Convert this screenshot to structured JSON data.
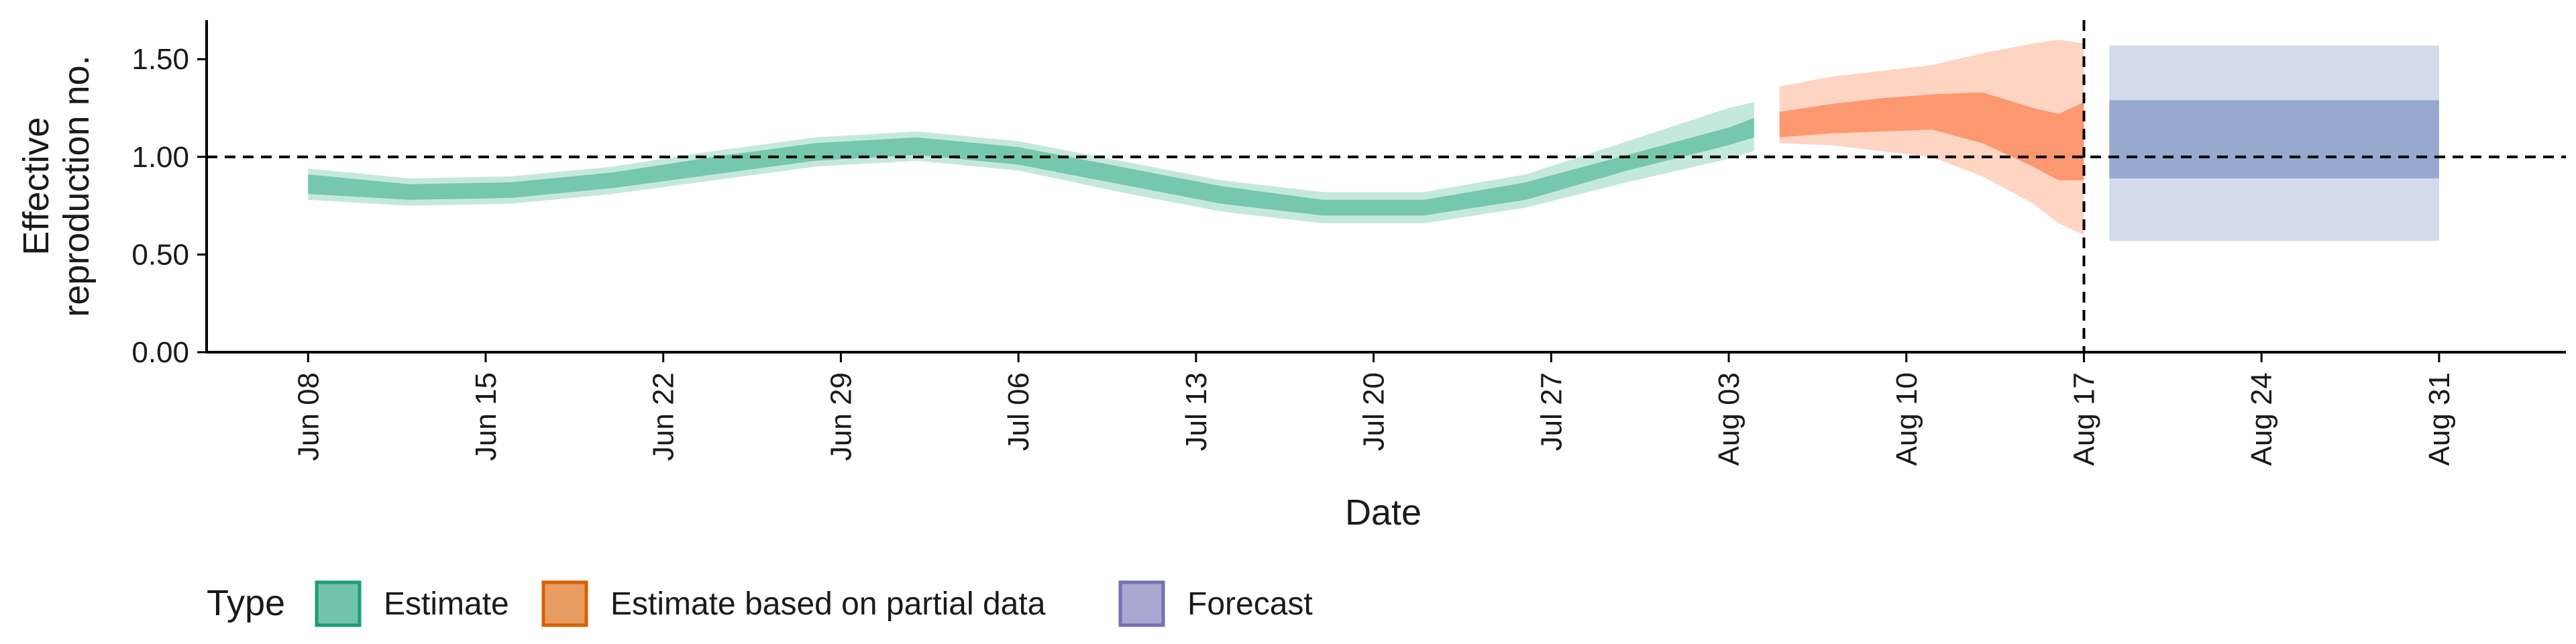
{
  "chart_data": {
    "type": "area",
    "xlabel": "Date",
    "ylabel_lines": [
      "Effective",
      "reproduction no."
    ],
    "ylim": [
      0,
      1.7
    ],
    "yticks": [
      0,
      0.5,
      1.0,
      1.5
    ],
    "ytick_labels": [
      "0.00",
      "0.50",
      "1.00",
      "1.50"
    ],
    "xlim": [
      "2020-06-04",
      "2020-09-05"
    ],
    "xticks": [
      "2020-06-08",
      "2020-06-15",
      "2020-06-22",
      "2020-06-29",
      "2020-07-06",
      "2020-07-13",
      "2020-07-20",
      "2020-07-27",
      "2020-08-03",
      "2020-08-10",
      "2020-08-17",
      "2020-08-24",
      "2020-08-31"
    ],
    "xtick_labels": [
      "Jun 08",
      "Jun 15",
      "Jun 22",
      "Jun 29",
      "Jul 06",
      "Jul 13",
      "Jul 20",
      "Jul 27",
      "Aug 03",
      "Aug 10",
      "Aug 17",
      "Aug 24",
      "Aug 31"
    ],
    "hline_y": 1.0,
    "vline_x": "2020-08-17",
    "legend": {
      "title": "Type",
      "position": "bottom-left",
      "items": [
        {
          "label": "Estimate",
          "color": "#1b9e77"
        },
        {
          "label": "Estimate based on partial data",
          "color": "#d95f02"
        },
        {
          "label": "Forecast",
          "color": "#7570b3"
        }
      ]
    },
    "series": [
      {
        "name": "Estimate",
        "color": "#66c2a5",
        "dates": [
          "2020-06-08",
          "2020-06-12",
          "2020-06-16",
          "2020-06-20",
          "2020-06-24",
          "2020-06-28",
          "2020-07-02",
          "2020-07-06",
          "2020-07-10",
          "2020-07-14",
          "2020-07-18",
          "2020-07-22",
          "2020-07-26",
          "2020-07-30",
          "2020-08-03",
          "2020-08-04"
        ],
        "outer_lower": [
          0.78,
          0.75,
          0.76,
          0.81,
          0.88,
          0.95,
          0.98,
          0.93,
          0.82,
          0.72,
          0.66,
          0.66,
          0.74,
          0.87,
          0.99,
          1.03
        ],
        "inner_lower": [
          0.81,
          0.78,
          0.79,
          0.84,
          0.91,
          0.98,
          1.01,
          0.96,
          0.86,
          0.76,
          0.7,
          0.7,
          0.78,
          0.93,
          1.06,
          1.1
        ],
        "inner_upper": [
          0.91,
          0.86,
          0.87,
          0.92,
          1.0,
          1.07,
          1.1,
          1.05,
          0.95,
          0.85,
          0.78,
          0.78,
          0.87,
          1.01,
          1.15,
          1.2
        ],
        "outer_upper": [
          0.94,
          0.89,
          0.9,
          0.95,
          1.03,
          1.1,
          1.13,
          1.08,
          0.98,
          0.88,
          0.82,
          0.82,
          0.91,
          1.08,
          1.25,
          1.28
        ]
      },
      {
        "name": "Estimate based on partial data",
        "color": "#fc8d62",
        "dates": [
          "2020-08-05",
          "2020-08-07",
          "2020-08-09",
          "2020-08-11",
          "2020-08-13",
          "2020-08-15",
          "2020-08-16",
          "2020-08-17"
        ],
        "outer_lower": [
          1.07,
          1.06,
          1.03,
          1.0,
          0.9,
          0.76,
          0.66,
          0.6
        ],
        "inner_lower": [
          1.1,
          1.12,
          1.13,
          1.14,
          1.07,
          0.95,
          0.88,
          0.88
        ],
        "inner_upper": [
          1.23,
          1.27,
          1.3,
          1.32,
          1.33,
          1.25,
          1.22,
          1.28
        ],
        "outer_upper": [
          1.36,
          1.41,
          1.44,
          1.47,
          1.53,
          1.58,
          1.6,
          1.58
        ]
      },
      {
        "name": "Forecast",
        "color": "#8da0cb",
        "dates": [
          "2020-08-18",
          "2020-08-31"
        ],
        "outer_lower": [
          0.57,
          0.57
        ],
        "inner_lower": [
          0.89,
          0.89
        ],
        "inner_upper": [
          1.29,
          1.29
        ],
        "outer_upper": [
          1.57,
          1.57
        ]
      }
    ]
  }
}
